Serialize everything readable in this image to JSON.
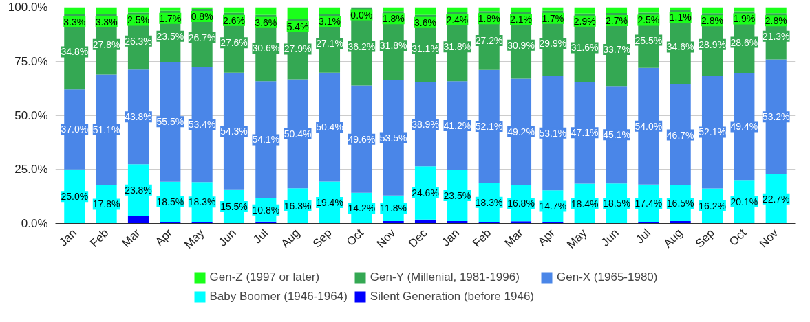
{
  "chart_data": {
    "type": "bar",
    "stacked": true,
    "categories": [
      "Jan",
      "Feb",
      "Mar",
      "Apr",
      "May",
      "Jun",
      "Jul",
      "Aug",
      "Sep",
      "Oct",
      "Nov",
      "Dec",
      "Jan",
      "Feb",
      "Mar",
      "Apr",
      "May",
      "Jun",
      "Jul",
      "Aug",
      "Sep",
      "Oct",
      "Nov"
    ],
    "ylim": [
      0,
      100
    ],
    "yticks": [
      {
        "value": 0,
        "label": "0.0%"
      },
      {
        "value": 25,
        "label": "25.0%"
      },
      {
        "value": 50,
        "label": "50.0%"
      },
      {
        "value": 75,
        "label": "75.0%"
      },
      {
        "value": 100,
        "label": "100.0%"
      }
    ],
    "grid": "y",
    "legend": "bottom",
    "series": [
      {
        "name": "Silent Generation (before 1946)",
        "color": "#0000ff",
        "values": [
          0,
          0,
          3.6,
          0.8,
          0.8,
          0,
          0.9,
          0,
          0,
          0,
          1.1,
          1.8,
          1.1,
          0.6,
          1.0,
          0.6,
          0,
          0,
          0.6,
          1.1,
          0,
          0,
          0
        ]
      },
      {
        "name": "Baby Boomer (1946-1964)",
        "color": "#00ffff",
        "values": [
          25.0,
          17.8,
          23.8,
          18.5,
          18.3,
          15.5,
          10.8,
          16.3,
          19.4,
          14.2,
          11.8,
          24.6,
          23.5,
          18.3,
          16.8,
          14.7,
          18.4,
          18.5,
          17.4,
          16.5,
          16.2,
          20.1,
          22.7
        ],
        "value_labels": [
          "25.0%",
          "17.8%",
          "23.8%",
          "18.5%",
          "18.3%",
          "15.5%",
          "10.8%",
          "16.3%",
          "19.4%",
          "14.2%",
          "11.8%",
          "24.6%",
          "23.5%",
          "18.3%",
          "16.8%",
          "14.7%",
          "18.4%",
          "18.5%",
          "17.4%",
          "16.5%",
          "16.2%",
          "20.1%",
          "22.7%"
        ]
      },
      {
        "name": "Gen-X (1965-1980)",
        "color": "#4a86e8",
        "values": [
          37.0,
          51.1,
          43.8,
          55.5,
          53.4,
          54.3,
          54.1,
          50.4,
          50.4,
          49.6,
          53.5,
          38.9,
          41.2,
          52.1,
          49.2,
          53.1,
          47.1,
          45.1,
          54.0,
          46.7,
          52.1,
          49.4,
          53.2
        ],
        "value_labels": [
          "37.0%",
          "51.1%",
          "43.8%",
          "55.5%",
          "53.4%",
          "54.3%",
          "54.1%",
          "50.4%",
          "50.4%",
          "49.6%",
          "53.5%",
          "38.9%",
          "41.2%",
          "52.1%",
          "49.2%",
          "53.1%",
          "47.1%",
          "45.1%",
          "54.0%",
          "46.7%",
          "52.1%",
          "49.4%",
          "53.2%"
        ]
      },
      {
        "name": "Gen-Y (Millenial, 1981-1996)",
        "color": "#34a853",
        "values": [
          34.8,
          27.8,
          26.3,
          23.5,
          26.7,
          27.6,
          30.6,
          27.9,
          27.1,
          36.2,
          31.8,
          31.1,
          31.8,
          27.2,
          30.9,
          29.9,
          31.6,
          33.7,
          25.5,
          34.6,
          28.9,
          28.6,
          21.3
        ],
        "value_labels": [
          "34.8%",
          "27.8%",
          "26.3%",
          "23.5%",
          "26.7%",
          "27.6%",
          "30.6%",
          "27.9%",
          "27.1%",
          "36.2%",
          "31.8%",
          "31.1%",
          "31.8%",
          "27.2%",
          "30.9%",
          "29.9%",
          "31.6%",
          "33.7%",
          "25.5%",
          "34.6%",
          "28.9%",
          "28.6%",
          "21.3%"
        ]
      },
      {
        "name": "Gen-Z (1997 or later)",
        "color": "#1aff1a",
        "values": [
          3.3,
          3.3,
          2.5,
          1.7,
          0.8,
          2.6,
          3.6,
          5.4,
          3.1,
          0.0,
          1.8,
          3.6,
          2.4,
          1.8,
          2.1,
          1.7,
          2.9,
          2.7,
          2.5,
          1.1,
          2.8,
          1.9,
          2.8
        ],
        "value_labels": [
          "3.3%",
          "3.3%",
          "2.5%",
          "1.7%",
          "0.8%",
          "2.6%",
          "3.6%",
          "5.4%",
          "3.1%",
          "0.0%",
          "1.8%",
          "3.6%",
          "2.4%",
          "1.8%",
          "2.1%",
          "1.7%",
          "2.9%",
          "2.7%",
          "2.5%",
          "1.1%",
          "2.8%",
          "1.9%",
          "2.8%"
        ]
      }
    ]
  }
}
